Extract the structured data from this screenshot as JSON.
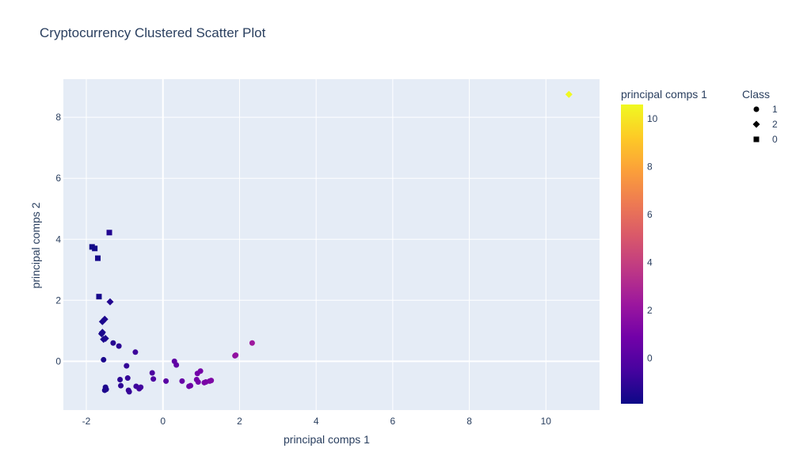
{
  "chart_data": {
    "type": "scatter",
    "title": "Cryptocurrency Clustered Scatter Plot",
    "xlabel": "principal comps 1",
    "ylabel": "principal comps 2",
    "xlim": [
      -2.6,
      11.4
    ],
    "ylim": [
      -1.6,
      9.25
    ],
    "x_ticks": [
      -2,
      0,
      2,
      4,
      6,
      8,
      10
    ],
    "y_ticks": [
      0,
      2,
      4,
      6,
      8
    ],
    "grid": true,
    "plot_background": "#e5ecf6",
    "colorbar": {
      "title": "principal comps 1",
      "range": [
        -1.9,
        10.6
      ],
      "ticks": [
        0,
        2,
        4,
        6,
        8,
        10
      ],
      "colorscale": "plasma",
      "colors": [
        "#0d0887",
        "#46039f",
        "#7201a8",
        "#9c179e",
        "#bd3786",
        "#d8576b",
        "#ed7953",
        "#fb9f3a",
        "#fdca26",
        "#f0f921"
      ]
    },
    "legend": {
      "title": "Class",
      "placement": "right",
      "entries": [
        {
          "name": "1",
          "symbol": "circle"
        },
        {
          "name": "2",
          "symbol": "diamond"
        },
        {
          "name": "0",
          "symbol": "square"
        }
      ]
    },
    "series": [
      {
        "name": "1",
        "symbol": "circle",
        "points": [
          [
            -1.55,
            0.05
          ],
          [
            -1.5,
            -0.85
          ],
          [
            -1.52,
            -0.95
          ],
          [
            -1.48,
            -0.92
          ],
          [
            -1.3,
            0.6
          ],
          [
            -1.15,
            0.5
          ],
          [
            -1.12,
            -0.6
          ],
          [
            -1.1,
            -0.8
          ],
          [
            -0.95,
            -0.15
          ],
          [
            -0.92,
            -0.55
          ],
          [
            -0.9,
            -0.95
          ],
          [
            -0.88,
            -1.0
          ],
          [
            -0.72,
            0.3
          ],
          [
            -0.7,
            -0.82
          ],
          [
            -0.62,
            -0.9
          ],
          [
            -0.58,
            -0.85
          ],
          [
            -0.28,
            -0.38
          ],
          [
            -0.25,
            -0.58
          ],
          [
            0.08,
            -0.65
          ],
          [
            0.3,
            0.0
          ],
          [
            0.35,
            -0.12
          ],
          [
            0.5,
            -0.65
          ],
          [
            0.68,
            -0.82
          ],
          [
            0.72,
            -0.8
          ],
          [
            0.9,
            -0.4
          ],
          [
            0.88,
            -0.6
          ],
          [
            0.92,
            -0.68
          ],
          [
            0.98,
            -0.32
          ],
          [
            1.08,
            -0.7
          ],
          [
            1.12,
            -0.68
          ],
          [
            1.22,
            -0.65
          ],
          [
            1.26,
            -0.63
          ],
          [
            1.88,
            0.18
          ],
          [
            1.9,
            0.2
          ],
          [
            2.33,
            0.6
          ]
        ]
      },
      {
        "name": "2",
        "symbol": "diamond",
        "points": [
          [
            -1.38,
            1.95
          ],
          [
            -1.58,
            1.3
          ],
          [
            -1.52,
            1.38
          ],
          [
            -1.6,
            0.9
          ],
          [
            -1.58,
            0.95
          ],
          [
            -1.55,
            0.72
          ],
          [
            -1.5,
            0.75
          ],
          [
            10.6,
            8.75
          ]
        ]
      },
      {
        "name": "0",
        "symbol": "square",
        "points": [
          [
            -1.4,
            4.22
          ],
          [
            -1.85,
            3.75
          ],
          [
            -1.78,
            3.7
          ],
          [
            -1.7,
            3.38
          ],
          [
            -1.67,
            2.12
          ]
        ]
      }
    ]
  }
}
